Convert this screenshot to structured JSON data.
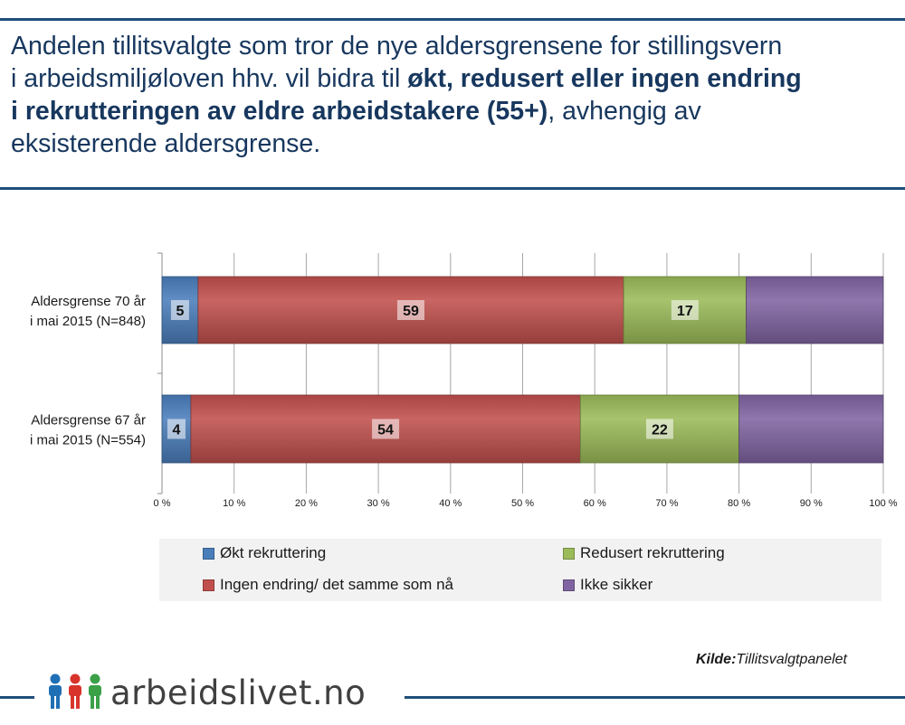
{
  "title": {
    "line1": "Andelen tillitsvalgte som tror de nye aldersgrensene for stillingsvern",
    "line2_plain": "i arbeidsmiljøloven hhv. vil bidra til ",
    "line2_bold": "økt, redusert eller ingen endring",
    "line3_bold": "i rekrutteringen  av eldre arbeidstakere (55+)",
    "line3_plain": ", avhengig av",
    "line4": "eksisterende aldersgrense."
  },
  "source": {
    "label": "Kilde:",
    "value": "Tillitsvalgtpanelet"
  },
  "logo": {
    "text": "arbeidslivet.no"
  },
  "colors": {
    "okt": "#4a7ebb",
    "ingen": "#c0504d",
    "redusert": "#9bbb59",
    "ikke": "#8064a2",
    "grid": "#a6a6a6",
    "accent": "#1f4e79"
  },
  "chart_data": {
    "type": "bar",
    "orientation": "horizontal",
    "stacked": "percent",
    "title": "",
    "xlabel": "",
    "ylabel": "",
    "xlim": [
      0,
      100
    ],
    "x_ticks": [
      "0 %",
      "10 %",
      "20 %",
      "30 %",
      "40 %",
      "50 %",
      "60 %",
      "70 %",
      "80 %",
      "90 %",
      "100 %"
    ],
    "categories": [
      [
        "Aldersgrense 70 år",
        "i mai 2015 (N=848)"
      ],
      [
        "Aldersgrense 67 år",
        "i mai 2015 (N=554)"
      ]
    ],
    "series": [
      {
        "name": "Økt rekruttering",
        "color_key": "okt",
        "values": [
          5,
          4
        ],
        "labels": [
          "5",
          "4"
        ]
      },
      {
        "name": "Ingen endring/ det samme som nå",
        "color_key": "ingen",
        "values": [
          59,
          54
        ],
        "labels": [
          "59",
          "54"
        ]
      },
      {
        "name": "Redusert rekruttering",
        "color_key": "redusert",
        "values": [
          17,
          22
        ],
        "labels": [
          "17",
          "22"
        ]
      },
      {
        "name": "Ikke sikker",
        "color_key": "ikke",
        "values": [
          19,
          20
        ],
        "labels": [
          "",
          ""
        ]
      }
    ],
    "legend": {
      "position": "bottom",
      "order": [
        "Økt rekruttering",
        "Redusert rekruttering",
        "Ingen endring/ det samme som nå",
        "Ikke sikker"
      ]
    },
    "grid": true
  }
}
